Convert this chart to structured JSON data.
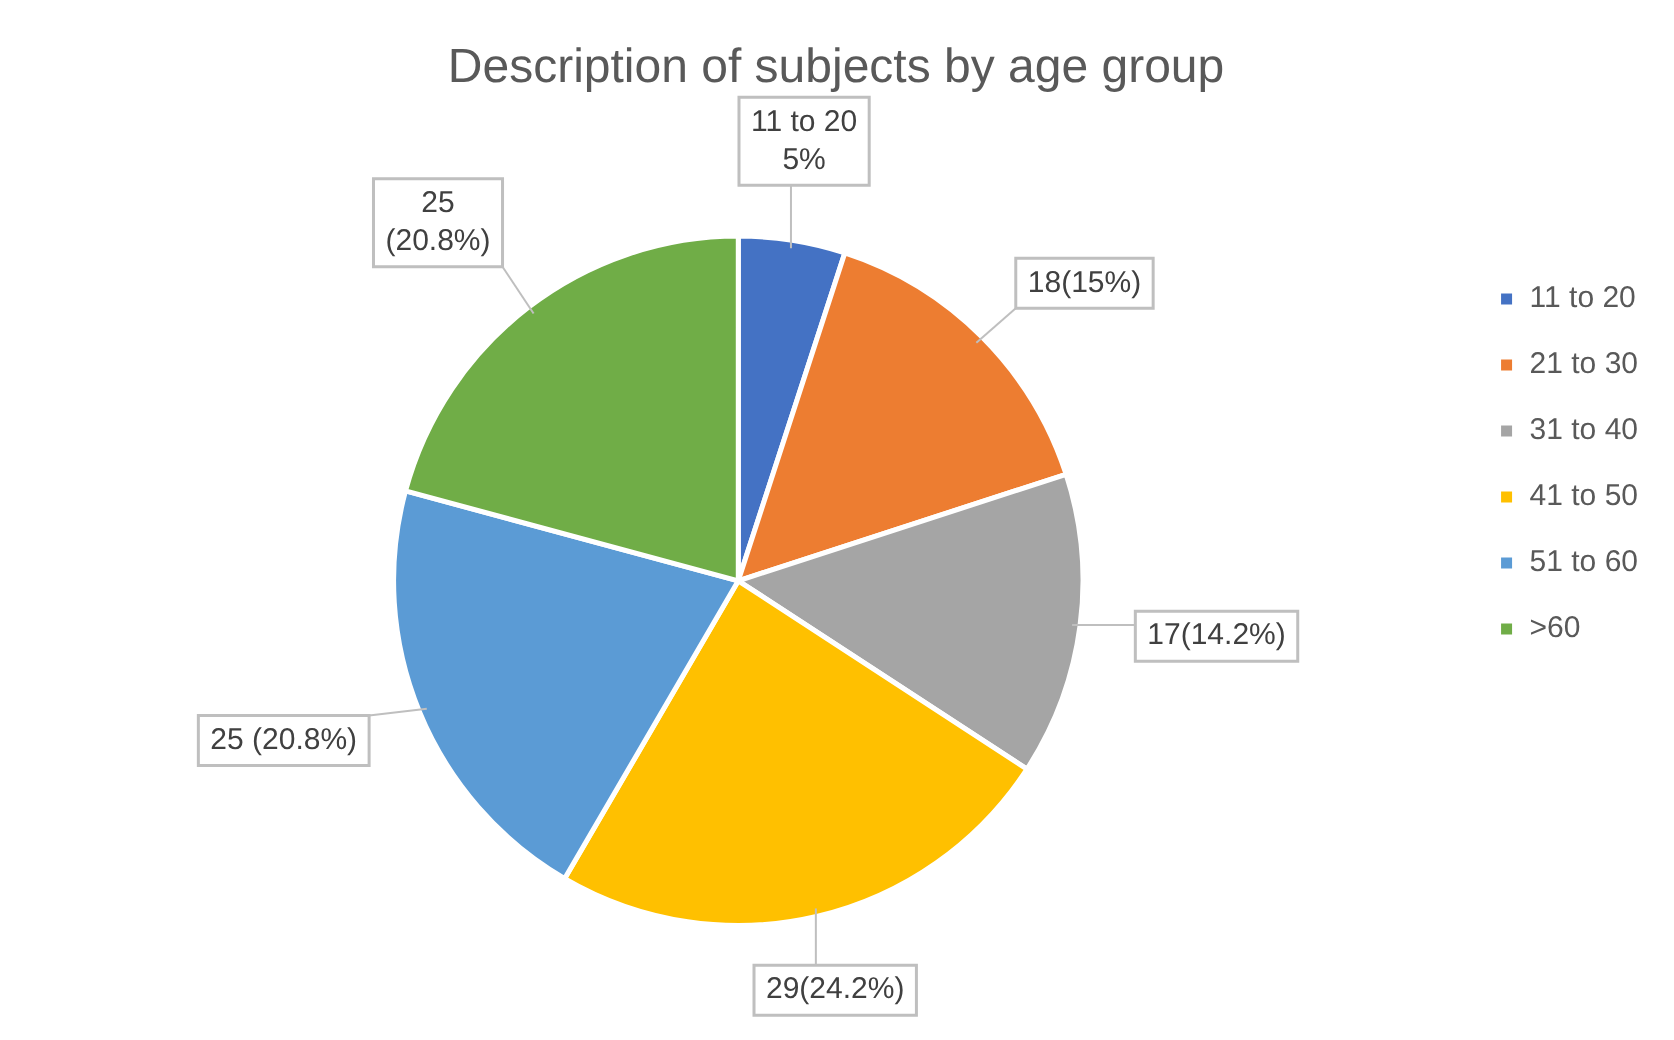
{
  "chart_data": {
    "type": "pie",
    "title": "Description of subjects by age group",
    "categories": [
      "11 to 20",
      "21 to 30",
      "31 to 40",
      "41 to 50",
      "51 to 60",
      ">60"
    ],
    "values": [
      5,
      15,
      14.2,
      24.2,
      20.8,
      20.8
    ],
    "colors": [
      "#4472c4",
      "#ed7d31",
      "#a5a5a5",
      "#ffc000",
      "#5b9bd5",
      "#70ad47"
    ],
    "value_labels": [
      "11 to 20 5%",
      "18(15%)",
      "17(14.2%)",
      "29(24.2%)",
      "25 (20.8%)",
      "25 (20.8%)"
    ],
    "legend": "right"
  }
}
